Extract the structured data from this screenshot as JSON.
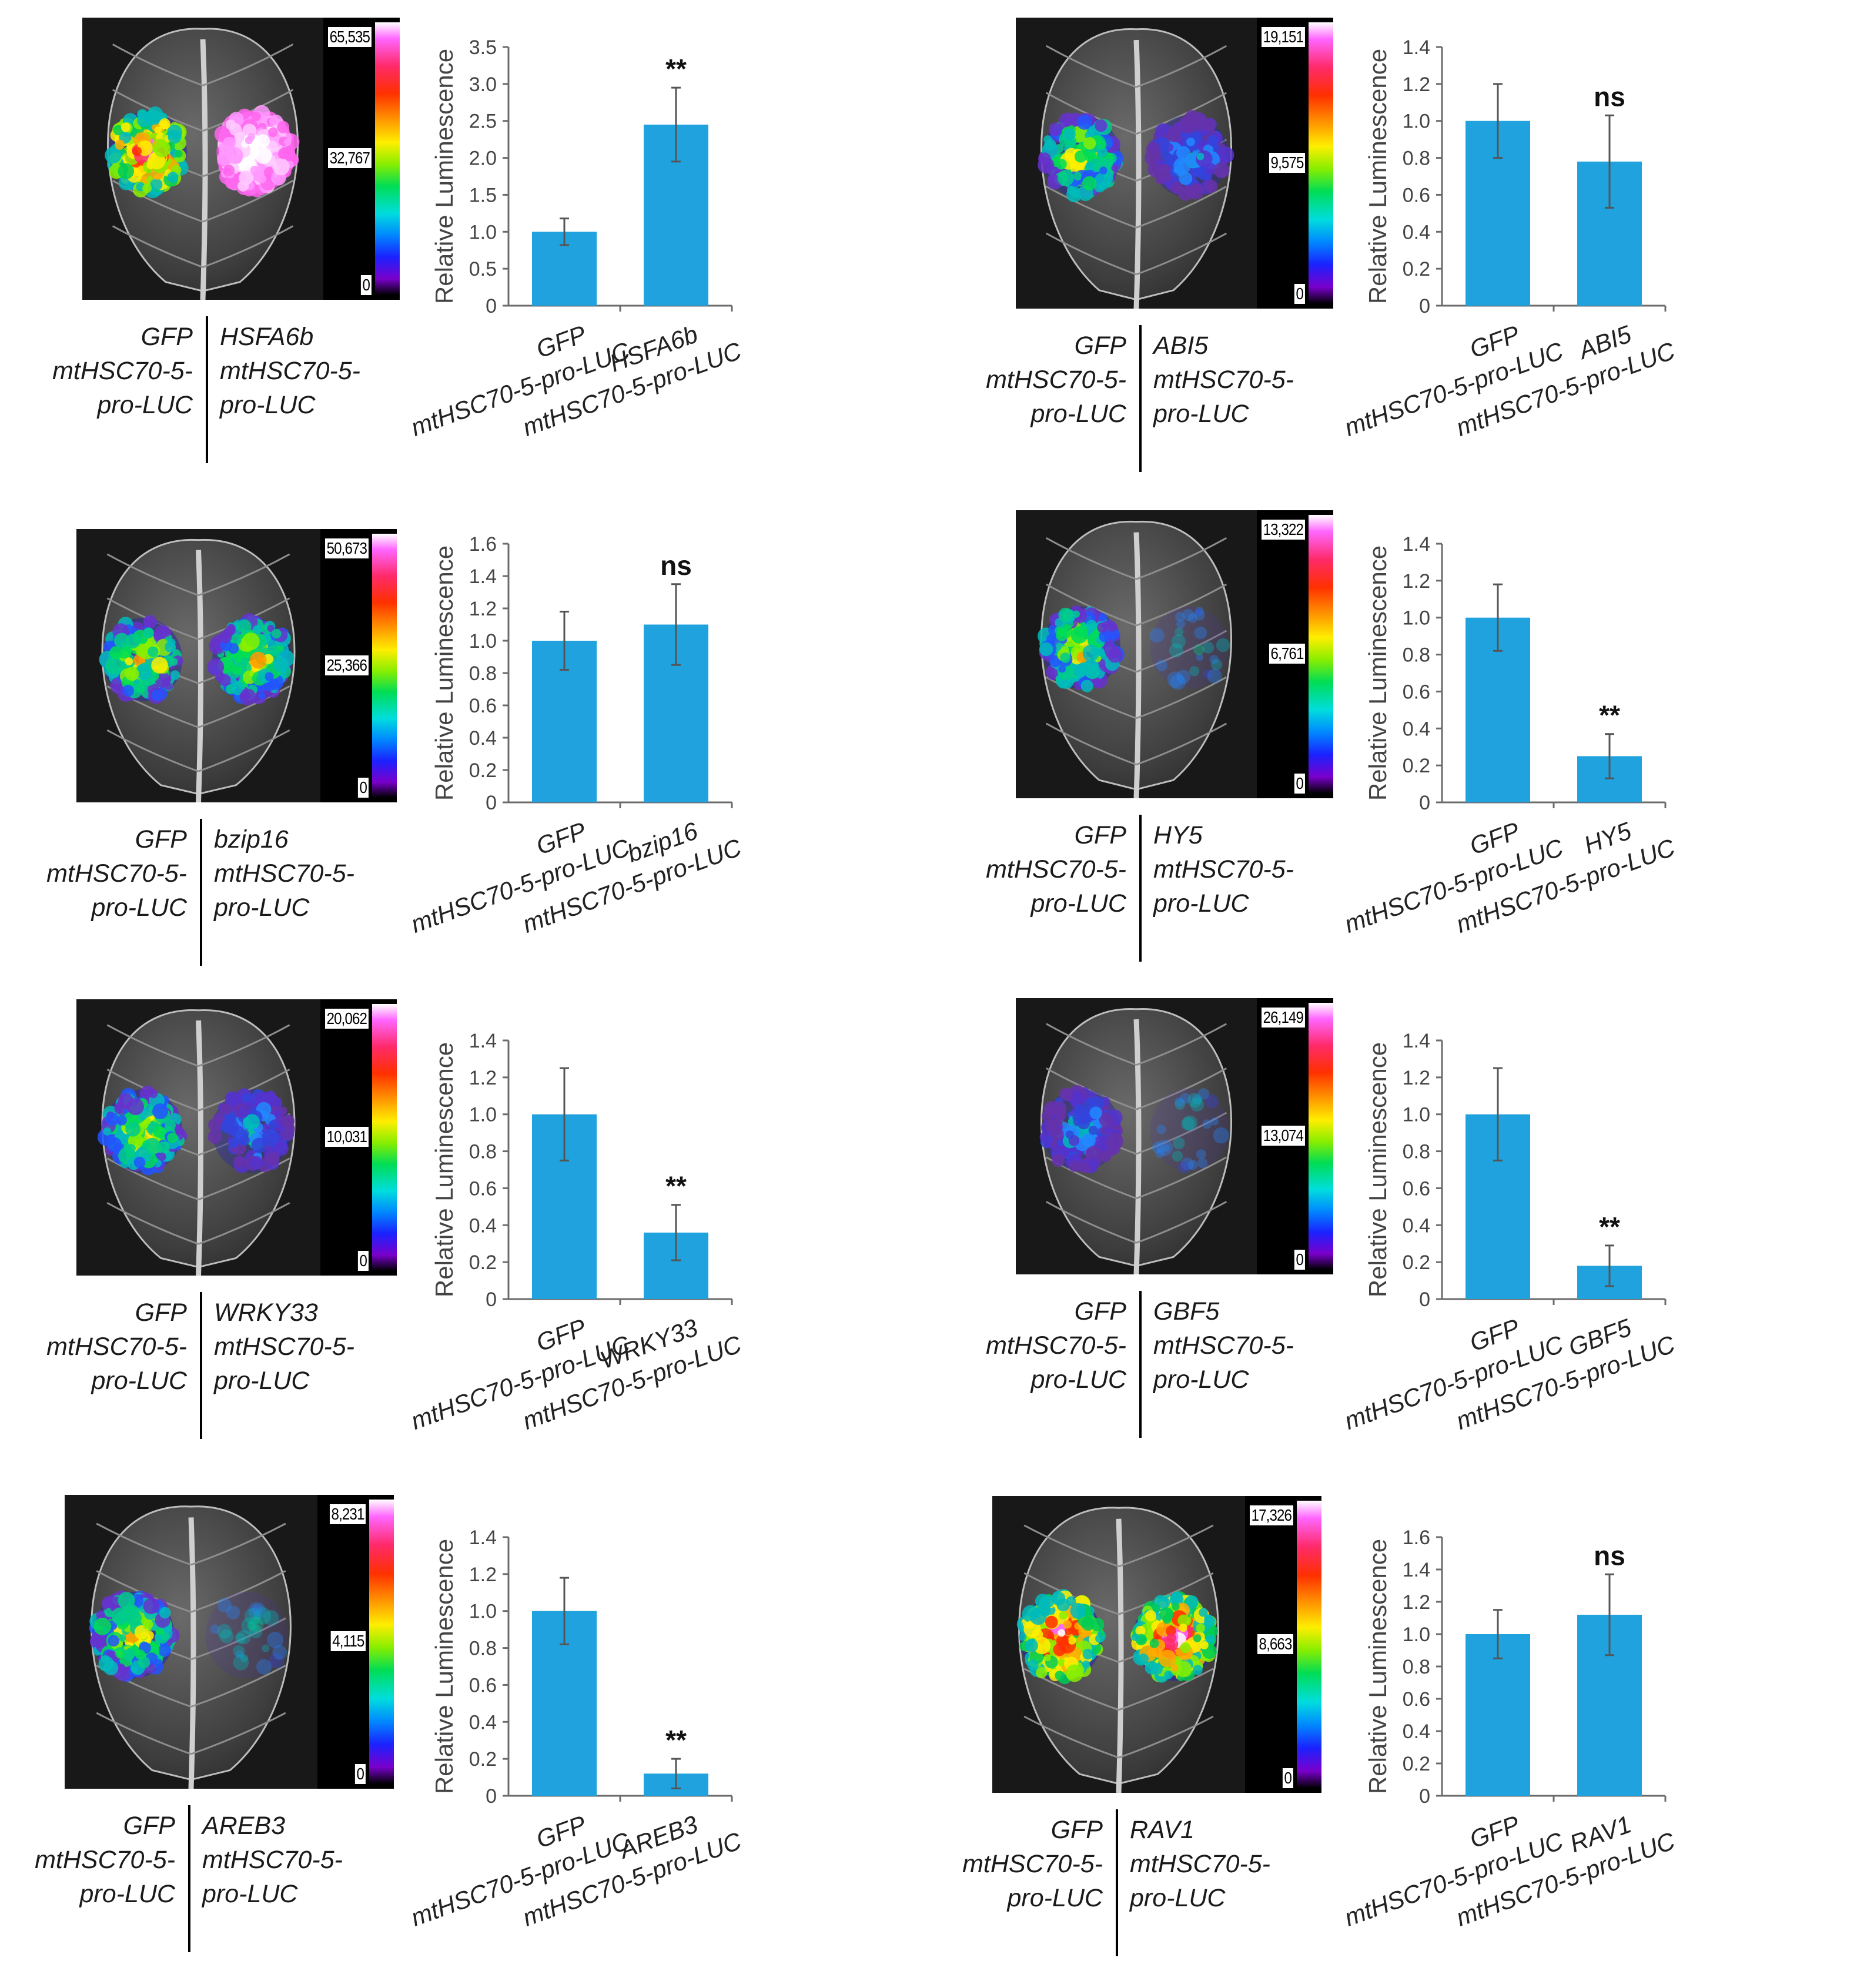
{
  "figure": {
    "panels": [
      {
        "id": "hsfa6b",
        "luminescence_scale": {
          "max": "65,535",
          "mid": "32,767",
          "min": "0"
        },
        "legend": {
          "control_lines": [
            "GFP",
            "mtHSC70-5-",
            "pro-LUC"
          ],
          "test_lines": [
            "HSFA6b",
            "mtHSC70-5-",
            "pro-LUC"
          ]
        },
        "spots": [
          {
            "side": "left",
            "intensity": 0.55,
            "color": "hot"
          },
          {
            "side": "right",
            "intensity": 1.0,
            "color": "white"
          }
        ],
        "chart_data": {
          "type": "bar",
          "ylabel": "Relative Luminescence",
          "ylim": [
            0,
            3.5
          ],
          "yticks": [
            "0",
            "0.5",
            "1.0",
            "1.5",
            "2.0",
            "2.5",
            "3.0",
            "3.5"
          ],
          "categories": [
            {
              "line1": "GFP",
              "line2": "mtHSC70-5-pro-LUC"
            },
            {
              "line1": "HSFA6b",
              "line2": "mtHSC70-5-pro-LUC"
            }
          ],
          "values": [
            1.0,
            2.45
          ],
          "errors": [
            0.18,
            0.5
          ],
          "significance": [
            "",
            "**"
          ]
        }
      },
      {
        "id": "abi5",
        "luminescence_scale": {
          "max": "19,151",
          "mid": "9,575",
          "min": "0"
        },
        "legend": {
          "control_lines": [
            "GFP",
            "mtHSC70-5-",
            "pro-LUC"
          ],
          "test_lines": [
            "ABI5",
            "mtHSC70-5-",
            "pro-LUC"
          ]
        },
        "spots": [
          {
            "side": "left",
            "intensity": 0.45,
            "color": "warm"
          },
          {
            "side": "right",
            "intensity": 0.25,
            "color": "cool"
          }
        ],
        "chart_data": {
          "type": "bar",
          "ylabel": "Relative Luminescence",
          "ylim": [
            0,
            1.4
          ],
          "yticks": [
            "0",
            "0.2",
            "0.4",
            "0.6",
            "0.8",
            "1.0",
            "1.2",
            "1.4"
          ],
          "categories": [
            {
              "line1": "GFP",
              "line2": "mtHSC70-5-pro-LUC"
            },
            {
              "line1": "ABI5",
              "line2": "mtHSC70-5-pro-LUC"
            }
          ],
          "values": [
            1.0,
            0.78
          ],
          "errors": [
            0.2,
            0.25
          ],
          "significance": [
            "",
            "ns"
          ]
        }
      },
      {
        "id": "bzip16",
        "luminescence_scale": {
          "max": "50,673",
          "mid": "25,366",
          "min": "0"
        },
        "legend": {
          "control_lines": [
            "GFP",
            "mtHSC70-5-",
            "pro-LUC"
          ],
          "test_lines": [
            "bzip16",
            "mtHSC70-5-",
            "pro-LUC"
          ]
        },
        "spots": [
          {
            "side": "left",
            "intensity": 0.5,
            "color": "warm"
          },
          {
            "side": "right",
            "intensity": 0.5,
            "color": "warm"
          }
        ],
        "chart_data": {
          "type": "bar",
          "ylabel": "Relative Luminescence",
          "ylim": [
            0,
            1.6
          ],
          "yticks": [
            "0",
            "0.2",
            "0.4",
            "0.6",
            "0.8",
            "1.0",
            "1.2",
            "1.4",
            "1.6"
          ],
          "categories": [
            {
              "line1": "GFP",
              "line2": "mtHSC70-5-pro-LUC"
            },
            {
              "line1": "bzip16",
              "line2": "mtHSC70-5-pro-LUC"
            }
          ],
          "values": [
            1.0,
            1.1
          ],
          "errors": [
            0.18,
            0.25
          ],
          "significance": [
            "",
            "ns"
          ]
        }
      },
      {
        "id": "hy5",
        "luminescence_scale": {
          "max": "13,322",
          "mid": "6,761",
          "min": "0"
        },
        "legend": {
          "control_lines": [
            "GFP",
            "mtHSC70-5-",
            "pro-LUC"
          ],
          "test_lines": [
            "HY5",
            "mtHSC70-5-",
            "pro-LUC"
          ]
        },
        "spots": [
          {
            "side": "left",
            "intensity": 0.5,
            "color": "warm"
          },
          {
            "side": "right",
            "intensity": 0.05,
            "color": "cool"
          }
        ],
        "chart_data": {
          "type": "bar",
          "ylabel": "Relative Luminescence",
          "ylim": [
            0,
            1.4
          ],
          "yticks": [
            "0",
            "0.2",
            "0.4",
            "0.6",
            "0.8",
            "1.0",
            "1.2",
            "1.4"
          ],
          "categories": [
            {
              "line1": "GFP",
              "line2": "mtHSC70-5-pro-LUC"
            },
            {
              "line1": "HY5",
              "line2": "mtHSC70-5-pro-LUC"
            }
          ],
          "values": [
            1.0,
            0.25
          ],
          "errors": [
            0.18,
            0.12
          ],
          "significance": [
            "",
            "**"
          ]
        }
      },
      {
        "id": "wrky33",
        "luminescence_scale": {
          "max": "20,062",
          "mid": "10,031",
          "min": "0"
        },
        "legend": {
          "control_lines": [
            "GFP",
            "mtHSC70-5-",
            "pro-LUC"
          ],
          "test_lines": [
            "WRKY33",
            "mtHSC70-5-",
            "pro-LUC"
          ]
        },
        "spots": [
          {
            "side": "left",
            "intensity": 0.5,
            "color": "warm"
          },
          {
            "side": "right",
            "intensity": 0.2,
            "color": "cool"
          }
        ],
        "chart_data": {
          "type": "bar",
          "ylabel": "Relative Luminescence",
          "ylim": [
            0,
            1.4
          ],
          "yticks": [
            "0",
            "0.2",
            "0.4",
            "0.6",
            "0.8",
            "1.0",
            "1.2",
            "1.4"
          ],
          "categories": [
            {
              "line1": "GFP",
              "line2": "mtHSC70-5-pro-LUC"
            },
            {
              "line1": "WRKY33",
              "line2": "mtHSC70-5-pro-LUC"
            }
          ],
          "values": [
            1.0,
            0.36
          ],
          "errors": [
            0.25,
            0.15
          ],
          "significance": [
            "",
            "**"
          ]
        }
      },
      {
        "id": "gbf5",
        "luminescence_scale": {
          "max": "26,149",
          "mid": "13,074",
          "min": "0"
        },
        "legend": {
          "control_lines": [
            "GFP",
            "mtHSC70-5-",
            "pro-LUC"
          ],
          "test_lines": [
            "GBF5",
            "mtHSC70-5-",
            "pro-LUC"
          ]
        },
        "spots": [
          {
            "side": "left",
            "intensity": 0.3,
            "color": "cool"
          },
          {
            "side": "right",
            "intensity": 0.05,
            "color": "cool"
          }
        ],
        "chart_data": {
          "type": "bar",
          "ylabel": "Relative Luminescence",
          "ylim": [
            0,
            1.4
          ],
          "yticks": [
            "0",
            "0.2",
            "0.4",
            "0.6",
            "0.8",
            "1.0",
            "1.2",
            "1.4"
          ],
          "categories": [
            {
              "line1": "GFP",
              "line2": "mtHSC70-5-pro-LUC"
            },
            {
              "line1": "GBF5",
              "line2": "mtHSC70-5-pro-LUC"
            }
          ],
          "values": [
            1.0,
            0.18
          ],
          "errors": [
            0.25,
            0.11
          ],
          "significance": [
            "",
            "**"
          ]
        }
      },
      {
        "id": "areb3",
        "luminescence_scale": {
          "max": "8,231",
          "mid": "4,115",
          "min": "0"
        },
        "legend": {
          "control_lines": [
            "GFP",
            "mtHSC70-5-",
            "pro-LUC"
          ],
          "test_lines": [
            "AREB3",
            "mtHSC70-5-",
            "pro-LUC"
          ]
        },
        "spots": [
          {
            "side": "left",
            "intensity": 0.65,
            "color": "warm"
          },
          {
            "side": "right",
            "intensity": 0.05,
            "color": "cool"
          }
        ],
        "chart_data": {
          "type": "bar",
          "ylabel": "Relative Luminescence",
          "ylim": [
            0,
            1.4
          ],
          "yticks": [
            "0",
            "0.2",
            "0.4",
            "0.6",
            "0.8",
            "1.0",
            "1.2",
            "1.4"
          ],
          "categories": [
            {
              "line1": "GFP",
              "line2": "mtHSC70-5-pro-LUC"
            },
            {
              "line1": "AREB3",
              "line2": "mtHSC70-5-pro-LUC"
            }
          ],
          "values": [
            1.0,
            0.12
          ],
          "errors": [
            0.18,
            0.08
          ],
          "significance": [
            "",
            "**"
          ]
        }
      },
      {
        "id": "rav1",
        "luminescence_scale": {
          "max": "17,326",
          "mid": "8,663",
          "min": "0"
        },
        "legend": {
          "control_lines": [
            "GFP",
            "mtHSC70-5-",
            "pro-LUC"
          ],
          "test_lines": [
            "RAV1",
            "mtHSC70-5-",
            "pro-LUC"
          ]
        },
        "spots": [
          {
            "side": "left",
            "intensity": 0.8,
            "color": "hot"
          },
          {
            "side": "right",
            "intensity": 0.85,
            "color": "hot"
          }
        ],
        "chart_data": {
          "type": "bar",
          "ylabel": "Relative Luminescence",
          "ylim": [
            0,
            1.6
          ],
          "yticks": [
            "0",
            "0.2",
            "0.4",
            "0.6",
            "0.8",
            "1.0",
            "1.2",
            "1.4",
            "1.6"
          ],
          "categories": [
            {
              "line1": "GFP",
              "line2": "mtHSC70-5-pro-LUC"
            },
            {
              "line1": "RAV1",
              "line2": "mtHSC70-5-pro-LUC"
            }
          ],
          "values": [
            1.0,
            1.12
          ],
          "errors": [
            0.15,
            0.25
          ],
          "significance": [
            "",
            "ns"
          ]
        }
      }
    ]
  }
}
